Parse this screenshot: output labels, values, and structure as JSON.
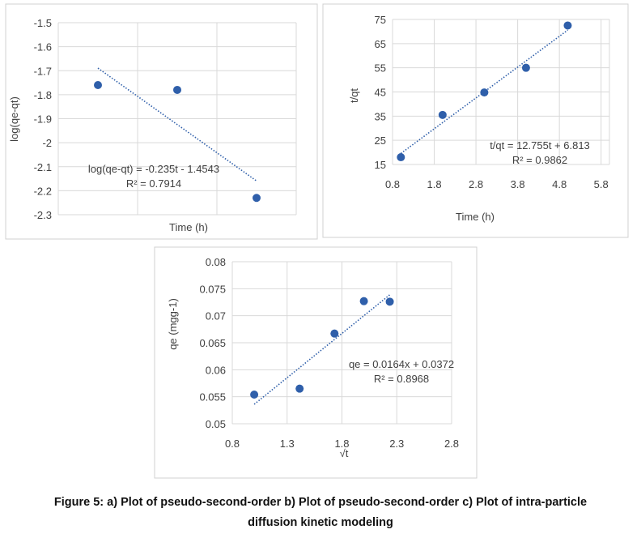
{
  "chart_data": [
    {
      "type": "scatter",
      "title": "",
      "xlabel": "Time (h)",
      "ylabel": "log(qe-qt)",
      "xlim": [
        0.5,
        3.5
      ],
      "ylim": [
        -2.3,
        -1.5
      ],
      "xticks": [
        "0.5",
        "1.5",
        "2.5",
        "3.5"
      ],
      "yticks": [
        "-1.5",
        "-1.6",
        "-1.7",
        "-1.8",
        "-1.9",
        "-2",
        "-2.1",
        "-2.2",
        "-2.3"
      ],
      "x": [
        1,
        2,
        3
      ],
      "y": [
        -1.76,
        -1.78,
        -2.23
      ],
      "trend": {
        "slope": -0.235,
        "intercept": -1.4543,
        "from": 1,
        "to": 3
      },
      "equation": "log(qe-qt) = -0.235t - 1.4543",
      "r2": "R² = 0.7914",
      "grid": true
    },
    {
      "type": "scatter",
      "title": "",
      "xlabel": "Time (h)",
      "ylabel": "t/qt",
      "xlim": [
        0.8,
        6.0
      ],
      "ylim": [
        15,
        75
      ],
      "xticks": [
        "0.8",
        "1.8",
        "2.8",
        "3.8",
        "4.8",
        "5.8"
      ],
      "yticks": [
        "75",
        "65",
        "55",
        "45",
        "35",
        "25",
        "15"
      ],
      "x": [
        1,
        2,
        3,
        4,
        5
      ],
      "y": [
        18,
        35.5,
        44.8,
        55,
        72.5
      ],
      "trend": {
        "slope": 12.755,
        "intercept": 6.813,
        "from": 1,
        "to": 5
      },
      "equation": "t/qt = 12.755t + 6.813",
      "r2": "R² = 0.9862",
      "grid": true
    },
    {
      "type": "scatter",
      "title": "",
      "xlabel": "√t",
      "ylabel": "qe (mgg-1)",
      "xlim": [
        0.8,
        2.8
      ],
      "ylim": [
        0.05,
        0.08
      ],
      "xticks": [
        "0.8",
        "1.3",
        "1.8",
        "2.3",
        "2.8"
      ],
      "yticks": [
        "0.08",
        "0.075",
        "0.07",
        "0.065",
        "0.06",
        "0.055",
        "0.05"
      ],
      "x": [
        1.0,
        1.414,
        1.732,
        2.0,
        2.236
      ],
      "y": [
        0.0554,
        0.0565,
        0.0667,
        0.0727,
        0.0726
      ],
      "trend": {
        "slope": 0.0164,
        "intercept": 0.0372,
        "from": 1.0,
        "to": 2.236
      },
      "equation": "qe = 0.0164x + 0.0372",
      "r2": "R² = 0.8968",
      "grid": true
    }
  ],
  "caption": {
    "line1": "Figure 5: a) Plot of pseudo-second-order b) Plot of pseudo-second-order c) Plot of intra-particle",
    "line2": "diffusion kinetic modeling"
  },
  "colors": {
    "marker": "#2f5faa",
    "grid": "#d9d9d9",
    "frame": "#d0d0d0"
  }
}
